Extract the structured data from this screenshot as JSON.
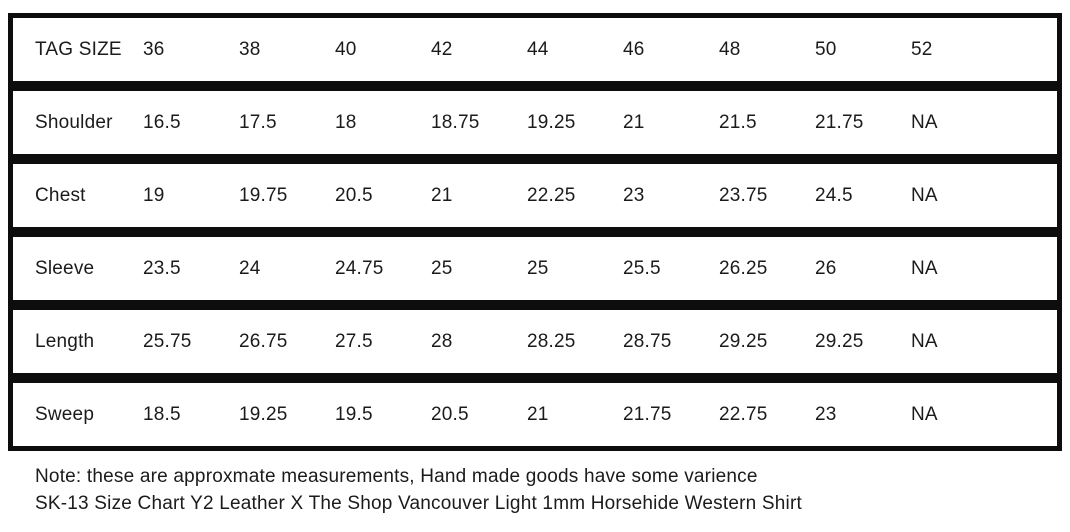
{
  "chart_data": {
    "type": "table",
    "title": "SK-13 Size Chart Y2 Leather X The Shop Vancouver Light 1mm Horsehide Western Shirt",
    "columns": [
      "36",
      "38",
      "40",
      "42",
      "44",
      "46",
      "48",
      "50",
      "52"
    ],
    "rows": [
      {
        "label": "TAG SIZE",
        "values": [
          "36",
          "38",
          "40",
          "42",
          "44",
          "46",
          "48",
          "50",
          "52"
        ]
      },
      {
        "label": "Shoulder",
        "values": [
          "16.5",
          "17.5",
          "18",
          "18.75",
          "19.25",
          "21",
          "21.5",
          "21.75",
          "NA"
        ]
      },
      {
        "label": "Chest",
        "values": [
          "19",
          "19.75",
          "20.5",
          "21",
          "22.25",
          "23",
          "23.75",
          "24.5",
          "NA"
        ]
      },
      {
        "label": "Sleeve",
        "values": [
          "23.5",
          "24",
          "24.75",
          "25",
          "25",
          "25.5",
          "26.25",
          "26",
          "NA"
        ]
      },
      {
        "label": "Length",
        "values": [
          "25.75",
          "26.75",
          "27.5",
          "28",
          "28.25",
          "28.75",
          "29.25",
          "29.25",
          "NA"
        ]
      },
      {
        "label": "Sweep",
        "values": [
          "18.5",
          "19.25",
          "19.5",
          "20.5",
          "21",
          "21.75",
          "22.75",
          "23",
          "NA"
        ]
      }
    ],
    "layout": {
      "grid": "horizontal-row-borders-only",
      "legend": "none"
    }
  },
  "footer": {
    "line1": "Note: these are approxmate measurements, Hand made goods have some varience",
    "line2": "SK-13 Size Chart Y2 Leather X The Shop Vancouver Light 1mm Horsehide Western Shirt"
  },
  "colors": {
    "border": "#0d0d0d",
    "text": "#1c1a1b",
    "background": "#ffffff"
  }
}
